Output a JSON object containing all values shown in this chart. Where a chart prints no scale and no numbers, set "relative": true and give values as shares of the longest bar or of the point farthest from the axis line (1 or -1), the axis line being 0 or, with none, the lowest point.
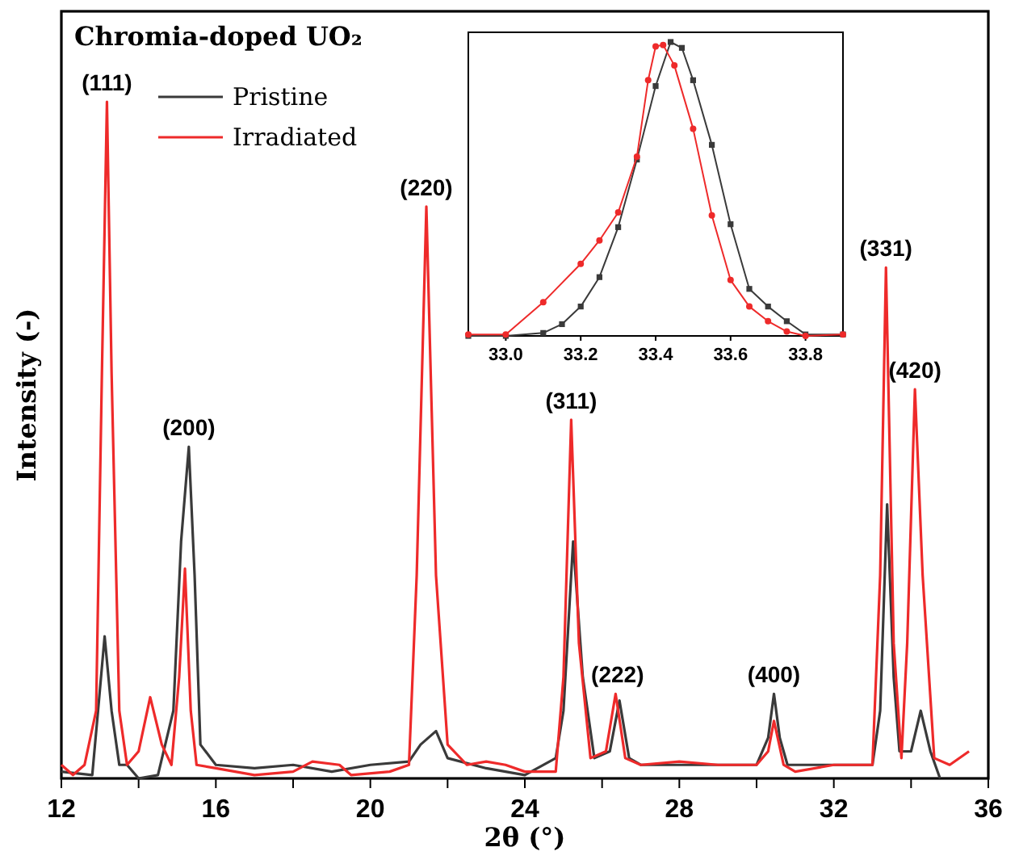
{
  "chart_data": [
    {
      "type": "line",
      "title": "Chromia-doped UO₂",
      "xlabel": "2θ (°)",
      "ylabel": "Intensity (-)",
      "relative": true,
      "xlim": [
        12,
        36
      ],
      "xticks": [
        12,
        {
          "value": 14,
          "label": null
        },
        16,
        {
          "value": 18,
          "label": null
        },
        20,
        {
          "value": 22,
          "label": null
        },
        24,
        {
          "value": 26,
          "label": null
        },
        28,
        {
          "value": 30,
          "label": null
        },
        32,
        {
          "value": 34,
          "label": null
        },
        36
      ],
      "legend": "top left",
      "marker": "none",
      "series": [
        {
          "name": "Pristine",
          "color": "#3a3a3a",
          "x": [
            12.0,
            12.8,
            12.95,
            13.12,
            13.3,
            13.5,
            13.7,
            14.0,
            14.5,
            14.9,
            15.1,
            15.3,
            15.45,
            15.6,
            16,
            17,
            18,
            19,
            20,
            21,
            21.3,
            21.7,
            22,
            23,
            24,
            24.8,
            25.0,
            25.25,
            25.5,
            25.8,
            26.2,
            26.45,
            26.7,
            27,
            28,
            29,
            30,
            30.3,
            30.45,
            30.6,
            30.8,
            32,
            33.0,
            33.2,
            33.38,
            33.55,
            33.7,
            34.0,
            34.25,
            34.5,
            34.75
          ],
          "values": [
            0.01,
            0.005,
            0.1,
            0.21,
            0.1,
            0.02,
            0.02,
            0.0,
            0.005,
            0.1,
            0.35,
            0.49,
            0.3,
            0.05,
            0.02,
            0.015,
            0.02,
            0.01,
            0.02,
            0.025,
            0.05,
            0.07,
            0.03,
            0.015,
            0.005,
            0.03,
            0.1,
            0.35,
            0.15,
            0.03,
            0.04,
            0.115,
            0.03,
            0.02,
            0.02,
            0.02,
            0.02,
            0.06,
            0.125,
            0.06,
            0.02,
            0.02,
            0.02,
            0.1,
            0.405,
            0.15,
            0.04,
            0.04,
            0.1,
            0.04,
            0.0
          ]
        },
        {
          "name": "Irradiated",
          "color": "#ee2a2a",
          "x": [
            12.0,
            12.3,
            12.6,
            12.9,
            13.05,
            13.18,
            13.3,
            13.5,
            13.7,
            14.0,
            14.3,
            14.6,
            14.85,
            15.05,
            15.2,
            15.35,
            15.5,
            16,
            17,
            18,
            18.5,
            19.2,
            19.5,
            20.5,
            21.0,
            21.2,
            21.45,
            21.7,
            22.0,
            22.5,
            23.0,
            23.5,
            24.0,
            24.8,
            25.0,
            25.2,
            25.4,
            25.7,
            26.1,
            26.35,
            26.6,
            27,
            28,
            29,
            30,
            30.3,
            30.45,
            30.7,
            31,
            32,
            33.0,
            33.2,
            33.35,
            33.55,
            33.75,
            33.9,
            34.1,
            34.3,
            34.6,
            35,
            35.5
          ],
          "values": [
            0.02,
            0.005,
            0.02,
            0.1,
            0.6,
            1.0,
            0.6,
            0.1,
            0.02,
            0.04,
            0.12,
            0.05,
            0.02,
            0.15,
            0.31,
            0.1,
            0.02,
            0.015,
            0.005,
            0.01,
            0.025,
            0.02,
            0.005,
            0.01,
            0.02,
            0.3,
            0.845,
            0.3,
            0.05,
            0.02,
            0.025,
            0.02,
            0.01,
            0.01,
            0.15,
            0.53,
            0.2,
            0.03,
            0.04,
            0.125,
            0.03,
            0.02,
            0.025,
            0.02,
            0.02,
            0.04,
            0.085,
            0.02,
            0.01,
            0.02,
            0.02,
            0.3,
            0.755,
            0.2,
            0.03,
            0.2,
            0.575,
            0.3,
            0.03,
            0.02,
            0.04
          ]
        }
      ],
      "annotations": [
        {
          "text": "(111)",
          "x": 13.18,
          "y": 1.0
        },
        {
          "text": "(200)",
          "x": 15.3,
          "y": 0.49
        },
        {
          "text": "(220)",
          "x": 21.45,
          "y": 0.845
        },
        {
          "text": "(311)",
          "x": 25.2,
          "y": 0.53
        },
        {
          "text": "(222)",
          "x": 26.4,
          "y": 0.125
        },
        {
          "text": "(400)",
          "x": 30.45,
          "y": 0.125
        },
        {
          "text": "(331)",
          "x": 33.35,
          "y": 0.755
        },
        {
          "text": "(420)",
          "x": 34.1,
          "y": 0.575
        }
      ]
    },
    {
      "type": "line",
      "relative": true,
      "xlim": [
        32.9,
        33.9
      ],
      "xticks": [
        {
          "value": 33,
          "label": "33.0"
        },
        33.2,
        33.4,
        33.6,
        33.8
      ],
      "tick_labels": "x",
      "series": [
        {
          "color": "#3a3a3a",
          "marker": "square",
          "x": [
            32.9,
            33.0,
            33.1,
            33.15,
            33.2,
            33.25,
            33.3,
            33.35,
            33.4,
            33.44,
            33.47,
            33.5,
            33.55,
            33.6,
            33.65,
            33.7,
            33.75,
            33.8,
            33.9
          ],
          "values": [
            0,
            0,
            0.01,
            0.04,
            0.1,
            0.2,
            0.37,
            0.6,
            0.85,
            1.0,
            0.98,
            0.87,
            0.65,
            0.38,
            0.16,
            0.1,
            0.05,
            0.005,
            0.005
          ]
        },
        {
          "color": "#ee2a2a",
          "marker": "circle",
          "x": [
            32.9,
            33.0,
            33.1,
            33.2,
            33.25,
            33.3,
            33.35,
            33.38,
            33.4,
            33.42,
            33.45,
            33.5,
            33.55,
            33.6,
            33.65,
            33.7,
            33.75,
            33.8,
            33.9
          ],
          "values": [
            0.005,
            0.005,
            0.115,
            0.245,
            0.325,
            0.42,
            0.61,
            0.87,
            0.985,
            0.99,
            0.92,
            0.705,
            0.41,
            0.19,
            0.1,
            0.05,
            0.015,
            0.0,
            0.005
          ]
        }
      ]
    }
  ]
}
